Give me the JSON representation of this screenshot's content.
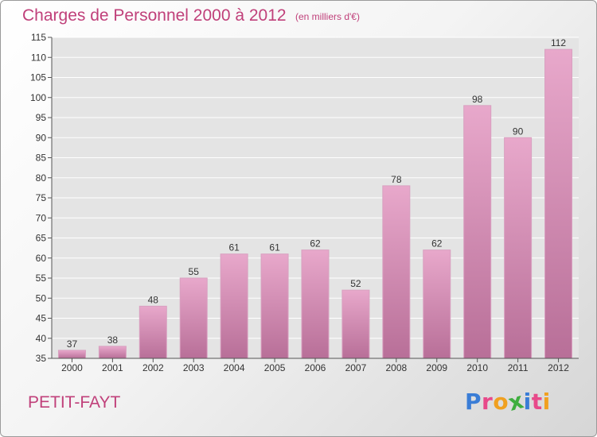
{
  "header": {
    "title": "Charges de Personnel 2000 à 2012",
    "subtitle": "(en milliers d'€)"
  },
  "footer": {
    "commune": "PETIT-FAYT",
    "logo_text": "Proxiti"
  },
  "colors": {
    "accent": "#c0407a",
    "bar_light": "#e8a8cb",
    "bar_dark": "#b86f98",
    "gridline": "#ffffff",
    "logo_letters": [
      "#3a7dd6",
      "#e84a8a",
      "#f0a020",
      "#3fae3f",
      "#3a7dd6",
      "#e84a8a",
      "#f0a020"
    ]
  },
  "chart_data": {
    "type": "bar",
    "categories": [
      "2000",
      "2001",
      "2002",
      "2003",
      "2004",
      "2005",
      "2006",
      "2007",
      "2008",
      "2009",
      "2010",
      "2011",
      "2012"
    ],
    "values": [
      37,
      38,
      48,
      55,
      61,
      61,
      62,
      52,
      78,
      62,
      98,
      90,
      112
    ],
    "data_labels": [
      "37",
      "38",
      "48",
      "55",
      "61",
      "61",
      "62",
      "52",
      "78",
      "62",
      "98",
      "90",
      "112"
    ],
    "ylim": [
      35,
      115
    ],
    "yticks": [
      35,
      40,
      45,
      50,
      55,
      60,
      65,
      70,
      75,
      80,
      85,
      90,
      95,
      100,
      105,
      110,
      115
    ],
    "grid": true,
    "xlabel": "",
    "ylabel": ""
  }
}
